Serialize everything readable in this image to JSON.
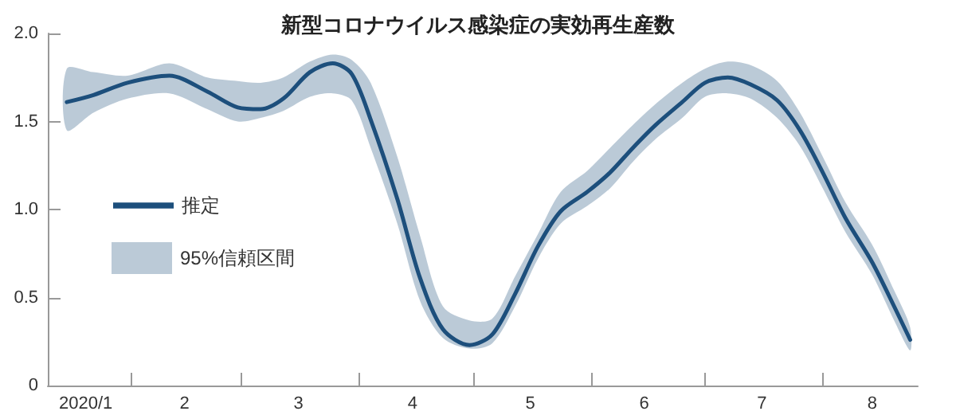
{
  "chart_data": {
    "type": "line",
    "title": "新型コロナウイルス感染症の実効再生産数",
    "x": [
      "2020-01-15",
      "2020-01-22",
      "2020-01-31",
      "2020-02-11",
      "2020-02-21",
      "2020-02-29",
      "2020-03-06",
      "2020-03-12",
      "2020-03-19",
      "2020-03-25",
      "2020-03-30",
      "2020-04-04",
      "2020-04-11",
      "2020-04-17",
      "2020-04-23",
      "2020-04-30",
      "2020-05-06",
      "2020-05-12",
      "2020-05-18",
      "2020-05-24",
      "2020-05-31",
      "2020-06-06",
      "2020-06-12",
      "2020-06-18",
      "2020-06-25",
      "2020-07-01",
      "2020-07-07",
      "2020-07-13",
      "2020-07-20",
      "2020-07-26",
      "2020-08-01",
      "2020-08-07",
      "2020-08-14",
      "2020-08-20",
      "2020-08-24"
    ],
    "series": [
      {
        "name": "推定",
        "color": "#1d4f7c",
        "values": [
          1.61,
          1.65,
          1.72,
          1.76,
          1.67,
          1.58,
          1.57,
          1.63,
          1.78,
          1.83,
          1.77,
          1.51,
          1.06,
          0.61,
          0.32,
          0.23,
          0.29,
          0.52,
          0.79,
          0.99,
          1.1,
          1.21,
          1.35,
          1.48,
          1.61,
          1.72,
          1.75,
          1.71,
          1.62,
          1.45,
          1.21,
          0.95,
          0.7,
          0.44,
          0.26
        ],
        "lower": [
          1.45,
          1.55,
          1.63,
          1.66,
          1.57,
          1.5,
          1.52,
          1.56,
          1.64,
          1.66,
          1.62,
          1.35,
          0.92,
          0.48,
          0.27,
          0.21,
          0.24,
          0.45,
          0.72,
          0.92,
          1.02,
          1.12,
          1.27,
          1.4,
          1.52,
          1.64,
          1.66,
          1.63,
          1.52,
          1.36,
          1.12,
          0.87,
          0.63,
          0.36,
          0.2
        ],
        "upper": [
          1.8,
          1.78,
          1.76,
          1.83,
          1.75,
          1.73,
          1.72,
          1.75,
          1.84,
          1.88,
          1.85,
          1.72,
          1.3,
          0.85,
          0.45,
          0.37,
          0.38,
          0.62,
          0.86,
          1.1,
          1.22,
          1.35,
          1.48,
          1.6,
          1.72,
          1.8,
          1.84,
          1.82,
          1.73,
          1.55,
          1.3,
          1.04,
          0.8,
          0.53,
          0.33
        ]
      }
    ],
    "annotations": [
      "95%信頼区間"
    ],
    "xlim": [
      "2020-01-10",
      "2020-08-26"
    ],
    "xticks": [
      {
        "value": "2020-01-20",
        "label": "2020/1"
      },
      {
        "value": "2020-02-01",
        "label": null
      },
      {
        "value": "2020-02-15",
        "label": "2"
      },
      {
        "value": "2020-03-01",
        "label": null
      },
      {
        "value": "2020-03-16",
        "label": "3"
      },
      {
        "value": "2020-04-01",
        "label": null
      },
      {
        "value": "2020-04-15",
        "label": "4"
      },
      {
        "value": "2020-05-01",
        "label": null
      },
      {
        "value": "2020-05-16",
        "label": "5"
      },
      {
        "value": "2020-06-01",
        "label": null
      },
      {
        "value": "2020-06-15",
        "label": "6"
      },
      {
        "value": "2020-07-01",
        "label": null
      },
      {
        "value": "2020-07-16",
        "label": "7"
      },
      {
        "value": "2020-08-01",
        "label": null
      },
      {
        "value": "2020-08-14",
        "label": "8"
      }
    ],
    "ylim": [
      0,
      2.0
    ],
    "yticks": [
      {
        "value": 0,
        "label": "0"
      },
      {
        "value": 0.5,
        "label": "0.5"
      },
      {
        "value": 1.0,
        "label": "1.0"
      },
      {
        "value": 1.5,
        "label": "1.5"
      },
      {
        "value": 2.0,
        "label": "2.0"
      }
    ],
    "grid": false,
    "legend": "left",
    "marker": "none",
    "line_style": "solid"
  }
}
